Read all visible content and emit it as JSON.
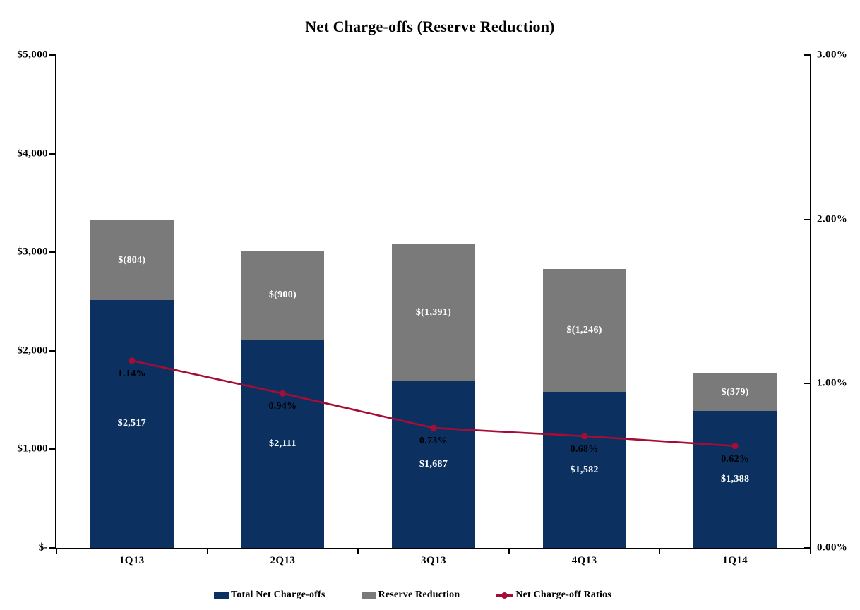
{
  "title": "Net Charge-offs (Reserve Reduction)",
  "colors": {
    "bar_primary": "#0C3160",
    "bar_secondary": "#7A7A7A",
    "line": "#A50D36",
    "axis": "#000000",
    "bar_label_text": "#FFFFFF",
    "ratio_label_text": "#000000"
  },
  "chart_data": {
    "type": "bar",
    "subtype": "stacked-column-with-line",
    "title": "Net Charge-offs (Reserve Reduction)",
    "categories": [
      "1Q13",
      "2Q13",
      "3Q13",
      "4Q13",
      "1Q14"
    ],
    "series": [
      {
        "name": "Total Net Charge-offs",
        "type": "bar",
        "axis": "left",
        "color": "#0C3160",
        "values": [
          2517,
          2111,
          1687,
          1582,
          1388
        ],
        "data_labels": [
          "$2,517",
          "$2,111",
          "$1,687",
          "$1,582",
          "$1,388"
        ],
        "label_color": "#FFFFFF"
      },
      {
        "name": "Reserve Reduction",
        "type": "bar",
        "axis": "left",
        "color": "#7A7A7A",
        "values": [
          804,
          900,
          1391,
          1246,
          379
        ],
        "data_labels": [
          "$(804)",
          "$(900)",
          "$(1,391)",
          "$(1,246)",
          "$(379)"
        ],
        "label_color": "#FFFFFF"
      },
      {
        "name": "Net Charge-off Ratios",
        "type": "line",
        "axis": "right",
        "color": "#A50D36",
        "values": [
          1.14,
          0.94,
          0.73,
          0.68,
          0.62
        ],
        "data_labels": [
          "1.14%",
          "0.94%",
          "0.73%",
          "0.68%",
          "0.62%"
        ],
        "label_color": "#000000"
      }
    ],
    "left_axis": {
      "min": 0,
      "max": 5000,
      "ticks": [
        {
          "value": 5000,
          "label": "$5,000"
        },
        {
          "value": 4000,
          "label": "$4,000"
        },
        {
          "value": 3000,
          "label": "$3,000"
        },
        {
          "value": 2000,
          "label": "$2,000"
        },
        {
          "value": 1000,
          "label": "$1,000"
        },
        {
          "value": 0,
          "label": "$-"
        }
      ]
    },
    "right_axis": {
      "min": 0,
      "max": 3,
      "ticks": [
        {
          "value": 3,
          "label": "3.00%"
        },
        {
          "value": 2,
          "label": "2.00%"
        },
        {
          "value": 1,
          "label": "1.00%"
        },
        {
          "value": 0,
          "label": "0.00%"
        }
      ]
    },
    "grid": false,
    "legend_position": "bottom"
  }
}
